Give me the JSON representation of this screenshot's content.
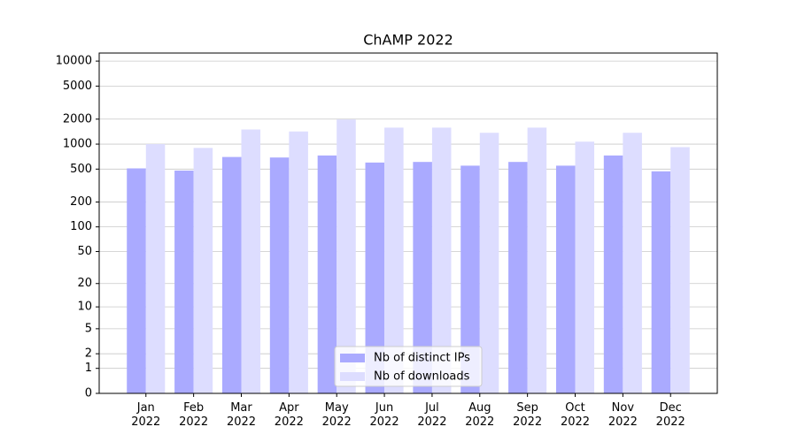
{
  "chart_data": {
    "type": "bar",
    "title": "ChAMP 2022",
    "categories": [
      "Jan 2022",
      "Feb 2022",
      "Mar 2022",
      "Apr 2022",
      "May 2022",
      "Jun 2022",
      "Jul 2022",
      "Aug 2022",
      "Sep 2022",
      "Oct 2022",
      "Nov 2022",
      "Dec 2022"
    ],
    "series": [
      {
        "name": "Nb of distinct IPs",
        "color": "#aaaaff",
        "values": [
          510,
          480,
          700,
          690,
          730,
          600,
          610,
          550,
          610,
          550,
          730,
          470
        ]
      },
      {
        "name": "Nb of downloads",
        "color": "#ddddff",
        "values": [
          1000,
          900,
          1500,
          1420,
          1980,
          1580,
          1580,
          1370,
          1580,
          1070,
          1370,
          920
        ]
      }
    ],
    "yscale": "log1p",
    "ylim": [
      0,
      12500
    ],
    "yticks": [
      0,
      1,
      2,
      5,
      10,
      20,
      50,
      100,
      200,
      500,
      1000,
      2000,
      5000,
      10000
    ],
    "grid": true,
    "legend": "lower center"
  }
}
